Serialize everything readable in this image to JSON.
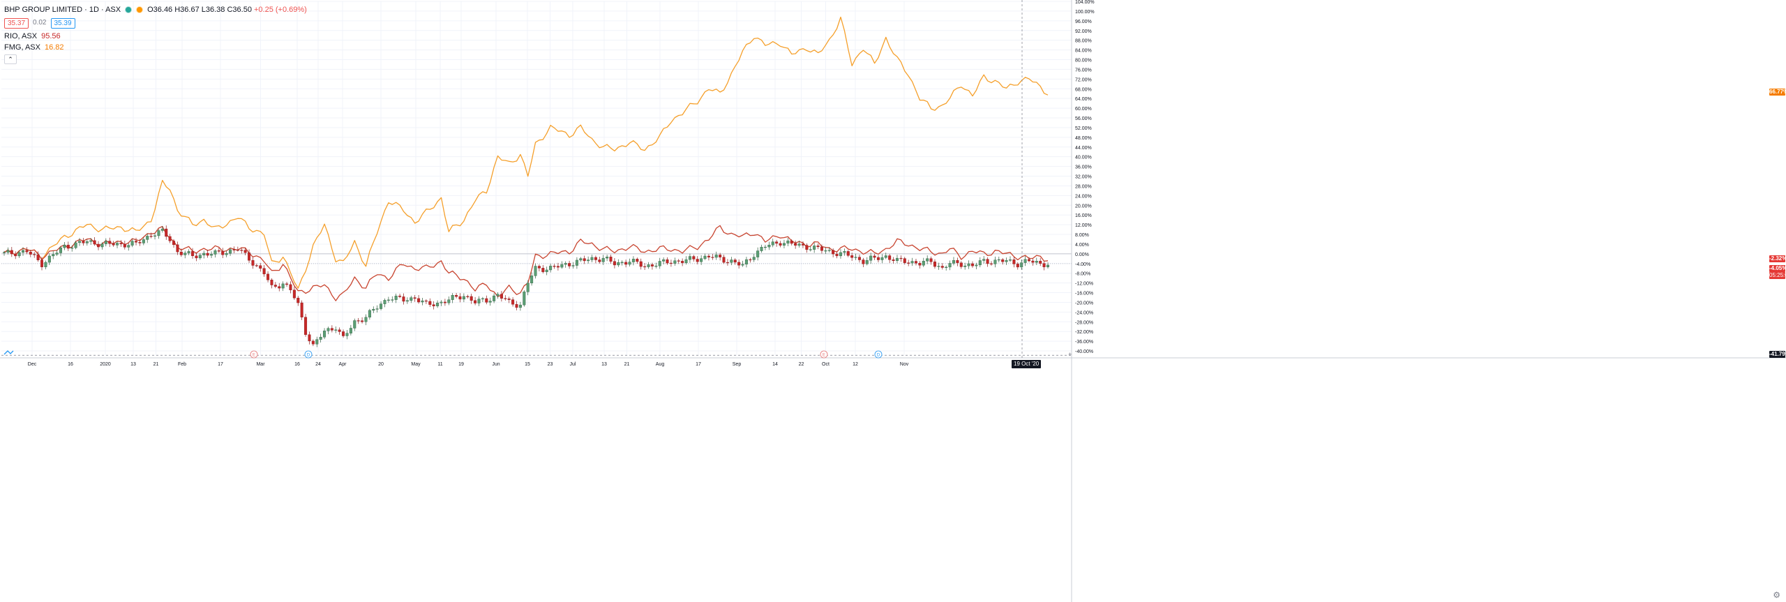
{
  "header": {
    "symbol_title": "BHP GROUP LIMITED · 1D · ASX",
    "bid": "35.37",
    "spread": "0.02",
    "ask": "35.39",
    "ohlc": "O36.46 H36.67 L36.38 C36.50",
    "change": "+0.25 (+0.69%)"
  },
  "compare": [
    {
      "name": "RIO, ASX",
      "value": "95.56",
      "color": "#c62828"
    },
    {
      "name": "FMG, ASX",
      "value": "16.82",
      "color": "#f57c00"
    }
  ],
  "collapse_icon": "chevron-up-icon",
  "price_tags": {
    "fmg": "66.77%",
    "rio": "-2.32%",
    "bhp": "-4.05%",
    "countdown": "05:25:08",
    "crosshair": "-41.79%"
  },
  "crosshair_date": "19 Oct '20",
  "colors": {
    "fmg": "#f59f2a",
    "rio": "#c8442f",
    "up": "#26a69a",
    "down": "#ef5350",
    "up_body": "#5b9e74",
    "down_body": "#c62828"
  },
  "chart_data": {
    "type": "line",
    "y_unit": "%",
    "ylim": [
      -42,
      104
    ],
    "y_ticks": [
      "104.00%",
      "100.00%",
      "96.00%",
      "92.00%",
      "88.00%",
      "84.00%",
      "80.00%",
      "76.00%",
      "72.00%",
      "68.00%",
      "64.00%",
      "60.00%",
      "56.00%",
      "52.00%",
      "48.00%",
      "44.00%",
      "40.00%",
      "36.00%",
      "32.00%",
      "28.00%",
      "24.00%",
      "20.00%",
      "16.00%",
      "12.00%",
      "8.00%",
      "4.00%",
      "0.00%",
      "-4.00%",
      "-8.00%",
      "-12.00%",
      "-16.00%",
      "-20.00%",
      "-24.00%",
      "-28.00%",
      "-32.00%",
      "-36.00%",
      "-40.00%"
    ],
    "x_ticks": [
      "Dec",
      "16",
      "2020",
      "13",
      "21",
      "Feb",
      "17",
      "Mar",
      "16",
      "24",
      "Apr",
      "20",
      "May",
      "11",
      "19",
      "Jun",
      "15",
      "23",
      "Jul",
      "13",
      "21",
      "Aug",
      "17",
      "Sep",
      "14",
      "22",
      "Oct",
      "12",
      "Nov"
    ],
    "events": [
      "E",
      "D",
      "E",
      "D"
    ],
    "series": [
      {
        "name": "FMG, ASX",
        "anchors": [
          [
            0,
            0
          ],
          [
            6,
            2
          ],
          [
            10,
            -1
          ],
          [
            16,
            7
          ],
          [
            22,
            12
          ],
          [
            26,
            10
          ],
          [
            31,
            11
          ],
          [
            35,
            9
          ],
          [
            39,
            14
          ],
          [
            42,
            29
          ],
          [
            44,
            27
          ],
          [
            46,
            18
          ],
          [
            50,
            12
          ],
          [
            53,
            14
          ],
          [
            56,
            10
          ],
          [
            62,
            15
          ],
          [
            65,
            11
          ],
          [
            69,
            8
          ],
          [
            71,
            -4
          ],
          [
            74,
            -1
          ],
          [
            76,
            -8
          ],
          [
            78,
            -15
          ],
          [
            82,
            3
          ],
          [
            85,
            12
          ],
          [
            88,
            -2
          ],
          [
            90,
            -4
          ],
          [
            93,
            5
          ],
          [
            96,
            -5
          ],
          [
            99,
            9
          ],
          [
            102,
            22
          ],
          [
            106,
            18
          ],
          [
            109,
            13
          ],
          [
            112,
            17
          ],
          [
            116,
            23
          ],
          [
            118,
            9
          ],
          [
            122,
            14
          ],
          [
            125,
            22
          ],
          [
            128,
            26
          ],
          [
            131,
            40
          ],
          [
            134,
            37
          ],
          [
            137,
            41
          ],
          [
            139,
            32
          ],
          [
            141,
            45
          ],
          [
            145,
            52
          ],
          [
            150,
            49
          ],
          [
            153,
            52
          ],
          [
            156,
            47
          ],
          [
            159,
            44
          ],
          [
            162,
            43
          ],
          [
            166,
            46
          ],
          [
            170,
            43
          ],
          [
            174,
            48
          ],
          [
            177,
            55
          ],
          [
            180,
            58
          ],
          [
            184,
            63
          ],
          [
            187,
            68
          ],
          [
            190,
            66
          ],
          [
            193,
            74
          ],
          [
            196,
            83
          ],
          [
            199,
            90
          ],
          [
            202,
            86
          ],
          [
            206,
            87
          ],
          [
            209,
            82
          ],
          [
            213,
            85
          ],
          [
            216,
            82
          ],
          [
            219,
            88
          ],
          [
            222,
            97
          ],
          [
            225,
            78
          ],
          [
            228,
            85
          ],
          [
            231,
            78
          ],
          [
            234,
            89
          ],
          [
            237,
            80
          ],
          [
            240,
            74
          ],
          [
            243,
            64
          ],
          [
            246,
            60
          ],
          [
            249,
            61
          ],
          [
            251,
            64
          ],
          [
            254,
            70
          ],
          [
            257,
            65
          ],
          [
            260,
            73
          ],
          [
            263,
            71
          ],
          [
            266,
            68
          ],
          [
            269,
            71
          ],
          [
            272,
            72
          ],
          [
            275,
            69
          ],
          [
            277,
            66
          ]
        ]
      },
      {
        "name": "RIO, ASX",
        "anchors": [
          [
            0,
            0
          ],
          [
            6,
            2
          ],
          [
            10,
            -1
          ],
          [
            16,
            3
          ],
          [
            22,
            6
          ],
          [
            26,
            4
          ],
          [
            31,
            5
          ],
          [
            35,
            5
          ],
          [
            39,
            9
          ],
          [
            42,
            10
          ],
          [
            44,
            7
          ],
          [
            46,
            3
          ],
          [
            50,
            1
          ],
          [
            53,
            2
          ],
          [
            56,
            2
          ],
          [
            62,
            2
          ],
          [
            65,
            1
          ],
          [
            69,
            -3
          ],
          [
            71,
            -8
          ],
          [
            74,
            -4
          ],
          [
            76,
            -10
          ],
          [
            78,
            -16
          ],
          [
            82,
            -14
          ],
          [
            85,
            -13
          ],
          [
            88,
            -18
          ],
          [
            90,
            -17
          ],
          [
            93,
            -10
          ],
          [
            96,
            -14
          ],
          [
            99,
            -8
          ],
          [
            102,
            -10
          ],
          [
            106,
            -4
          ],
          [
            109,
            -6
          ],
          [
            112,
            -6
          ],
          [
            116,
            -3
          ],
          [
            118,
            -8
          ],
          [
            122,
            -10
          ],
          [
            125,
            -15
          ],
          [
            128,
            -12
          ],
          [
            131,
            -18
          ],
          [
            134,
            -14
          ],
          [
            137,
            -16
          ],
          [
            139,
            -12
          ],
          [
            141,
            -1
          ],
          [
            145,
            0
          ],
          [
            150,
            1
          ],
          [
            153,
            5
          ],
          [
            156,
            4
          ],
          [
            159,
            2
          ],
          [
            162,
            1
          ],
          [
            166,
            3
          ],
          [
            170,
            1
          ],
          [
            174,
            2
          ],
          [
            177,
            2
          ],
          [
            180,
            1
          ],
          [
            184,
            3
          ],
          [
            187,
            6
          ],
          [
            190,
            11
          ],
          [
            193,
            8
          ],
          [
            196,
            7
          ],
          [
            199,
            9
          ],
          [
            202,
            5
          ],
          [
            206,
            8
          ],
          [
            209,
            5
          ],
          [
            213,
            4
          ],
          [
            216,
            4
          ],
          [
            219,
            2
          ],
          [
            222,
            2
          ],
          [
            225,
            2
          ],
          [
            228,
            1
          ],
          [
            231,
            0
          ],
          [
            234,
            2
          ],
          [
            237,
            5
          ],
          [
            240,
            4
          ],
          [
            243,
            2
          ],
          [
            246,
            1
          ],
          [
            249,
            0
          ],
          [
            251,
            2
          ],
          [
            254,
            -1
          ],
          [
            257,
            1
          ],
          [
            260,
            0
          ],
          [
            263,
            1
          ],
          [
            266,
            0
          ],
          [
            269,
            -1
          ],
          [
            272,
            -2
          ],
          [
            275,
            -1
          ],
          [
            277,
            -2.3
          ]
        ]
      },
      {
        "name": "BHP GROUP LIMITED",
        "style": "candles",
        "anchors": [
          [
            0,
            0
          ],
          [
            6,
            1
          ],
          [
            10,
            -4
          ],
          [
            16,
            3
          ],
          [
            22,
            5
          ],
          [
            26,
            4
          ],
          [
            31,
            4
          ],
          [
            35,
            4
          ],
          [
            39,
            8
          ],
          [
            42,
            9
          ],
          [
            44,
            6
          ],
          [
            46,
            1
          ],
          [
            50,
            -1
          ],
          [
            53,
            0
          ],
          [
            56,
            0
          ],
          [
            62,
            2
          ],
          [
            65,
            -2
          ],
          [
            69,
            -8
          ],
          [
            71,
            -14
          ],
          [
            74,
            -12
          ],
          [
            76,
            -15
          ],
          [
            78,
            -21
          ],
          [
            80,
            -32
          ],
          [
            82,
            -38
          ],
          [
            85,
            -32
          ],
          [
            88,
            -30
          ],
          [
            90,
            -35
          ],
          [
            93,
            -28
          ],
          [
            96,
            -26
          ],
          [
            99,
            -22
          ],
          [
            102,
            -18
          ],
          [
            106,
            -19
          ],
          [
            109,
            -18
          ],
          [
            112,
            -21
          ],
          [
            116,
            -20
          ],
          [
            118,
            -19
          ],
          [
            122,
            -17
          ],
          [
            125,
            -20
          ],
          [
            128,
            -19
          ],
          [
            131,
            -17
          ],
          [
            134,
            -20
          ],
          [
            137,
            -21
          ],
          [
            139,
            -12
          ],
          [
            141,
            -6
          ],
          [
            145,
            -6
          ],
          [
            150,
            -4
          ],
          [
            153,
            -3
          ],
          [
            156,
            -2
          ],
          [
            159,
            -2
          ],
          [
            162,
            -4
          ],
          [
            166,
            -3
          ],
          [
            170,
            -5
          ],
          [
            174,
            -4
          ],
          [
            177,
            -3
          ],
          [
            180,
            -3
          ],
          [
            184,
            -2
          ],
          [
            187,
            -1
          ],
          [
            190,
            -2
          ],
          [
            193,
            -3
          ],
          [
            196,
            -5
          ],
          [
            199,
            0
          ],
          [
            202,
            3
          ],
          [
            206,
            5
          ],
          [
            209,
            4
          ],
          [
            213,
            3
          ],
          [
            216,
            2
          ],
          [
            219,
            1
          ],
          [
            222,
            0
          ],
          [
            225,
            -1
          ],
          [
            228,
            -3
          ],
          [
            231,
            -2
          ],
          [
            234,
            -1
          ],
          [
            237,
            -3
          ],
          [
            240,
            -3
          ],
          [
            243,
            -4
          ],
          [
            246,
            -3
          ],
          [
            249,
            -6
          ],
          [
            251,
            -4
          ],
          [
            254,
            -4
          ],
          [
            257,
            -5
          ],
          [
            260,
            -3
          ],
          [
            263,
            -3
          ],
          [
            266,
            -3
          ],
          [
            269,
            -4
          ],
          [
            272,
            -3
          ],
          [
            275,
            -4
          ],
          [
            277,
            -4.05
          ]
        ]
      }
    ]
  }
}
